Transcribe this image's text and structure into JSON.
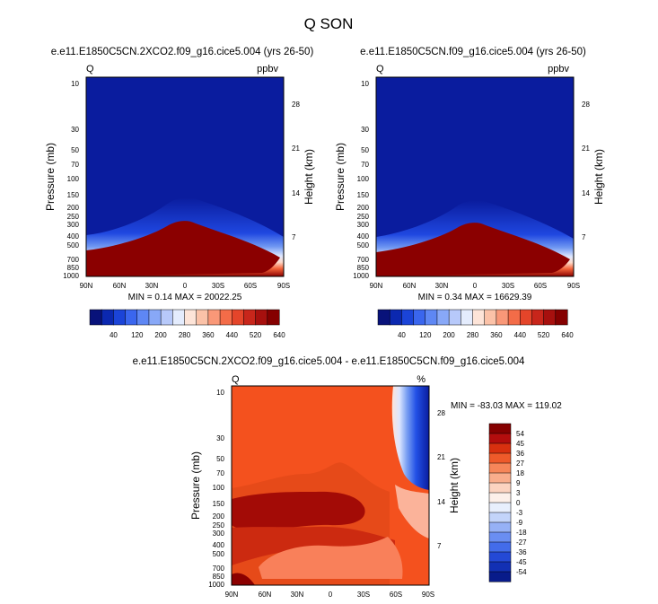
{
  "figure": {
    "title": "Q SON"
  },
  "colors": {
    "frame": "#000000",
    "background": "#ffffff"
  },
  "chart_data": [
    {
      "type": "heatmap",
      "title": "e.e11.E1850C5CN.2XCO2.f09_g16.cice5.004 (yrs 26-50)",
      "left_label": "Q",
      "right_label": "ppbv",
      "ylabel": "Pressure (mb)",
      "y2label": "Height (km)",
      "xticks": [
        "90N",
        "60N",
        "30N",
        "0",
        "30S",
        "60S",
        "90S"
      ],
      "yticks": [
        "10",
        "30",
        "50",
        "70",
        "100",
        "150",
        "200",
        "250",
        "300",
        "400",
        "500",
        "700",
        "850",
        "1000"
      ],
      "y2ticks": [
        "28",
        "21",
        "14",
        "7"
      ],
      "stats": "MIN =   0.14  MAX = 20022.25",
      "peak_pressure": 290,
      "colorbar_labels": [
        "40",
        "120",
        "200",
        "280",
        "360",
        "440",
        "520",
        "640"
      ]
    },
    {
      "type": "heatmap",
      "title": "e.e11.E1850C5CN.f09_g16.cice5.004 (yrs 26-50)",
      "left_label": "Q",
      "right_label": "ppbv",
      "ylabel": "Pressure (mb)",
      "y2label": "Height (km)",
      "xticks": [
        "90N",
        "60N",
        "30N",
        "0",
        "30S",
        "60S",
        "90S"
      ],
      "yticks": [
        "10",
        "30",
        "50",
        "70",
        "100",
        "150",
        "200",
        "250",
        "300",
        "400",
        "500",
        "700",
        "850",
        "1000"
      ],
      "y2ticks": [
        "28",
        "21",
        "14",
        "7"
      ],
      "stats": "MIN =   0.34  MAX = 16629.39",
      "peak_pressure": 300,
      "colorbar_labels": [
        "40",
        "120",
        "200",
        "280",
        "360",
        "440",
        "520",
        "640"
      ]
    },
    {
      "type": "heatmap",
      "title": "e.e11.E1850C5CN.2XCO2.f09_g16.cice5.004 - e.e11.E1850C5CN.f09_g16.cice5.004",
      "left_label": "Q",
      "right_label": "%",
      "ylabel": "Pressure (mb)",
      "y2label": "Height (km)",
      "xticks": [
        "90N",
        "60N",
        "30N",
        "0",
        "30S",
        "60S",
        "90S"
      ],
      "yticks": [
        "10",
        "30",
        "50",
        "70",
        "100",
        "150",
        "200",
        "250",
        "300",
        "400",
        "500",
        "700",
        "850",
        "1000"
      ],
      "y2ticks": [
        "28",
        "21",
        "14",
        "7"
      ],
      "stats": "MIN = -83.03  MAX = 119.02",
      "colorbar_labels": [
        "54",
        "45",
        "36",
        "27",
        "18",
        "9",
        "3",
        "0",
        "-3",
        "-9",
        "-18",
        "-27",
        "-36",
        "-45",
        "-54"
      ]
    }
  ]
}
